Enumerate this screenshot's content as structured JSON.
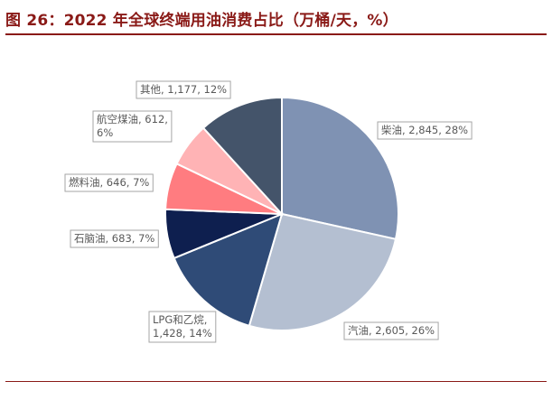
{
  "title": "图 26：2022 年全球终端用油消费占比（万桶/天，%）",
  "chart_data": {
    "type": "pie",
    "title": "图 26：2022 年全球终端用油消费占比（万桶/天，%）",
    "slices": [
      {
        "name": "柴油",
        "value": 2845,
        "percent": 28,
        "color": "#7f92b3",
        "label_lines": [
          "柴油, 2,845, 28%"
        ]
      },
      {
        "name": "汽油",
        "value": 2605,
        "percent": 26,
        "color": "#b4bfd1",
        "label_lines": [
          "汽油, 2,605, 26%"
        ]
      },
      {
        "name": "LPG和乙烷",
        "value": 1428,
        "percent": 14,
        "color": "#2f4b77",
        "label_lines": [
          "LPG和乙烷,",
          "1,428, 14%"
        ]
      },
      {
        "name": "石脑油",
        "value": 683,
        "percent": 7,
        "color": "#0e1f4f",
        "label_lines": [
          "石脑油, 683, 7%"
        ]
      },
      {
        "name": "燃料油",
        "value": 646,
        "percent": 7,
        "color": "#ff7c80",
        "label_lines": [
          "燃料油, 646, 7%"
        ]
      },
      {
        "name": "航空煤油",
        "value": 612,
        "percent": 6,
        "color": "#ffb3b5",
        "label_lines": [
          "航空煤油, 612,",
          "6%"
        ]
      },
      {
        "name": "其他",
        "value": 1177,
        "percent": 12,
        "color": "#44546a",
        "label_lines": [
          "其他, 1,177, 12%"
        ]
      }
    ],
    "start_angle_deg": 0,
    "direction": "clockwise"
  }
}
